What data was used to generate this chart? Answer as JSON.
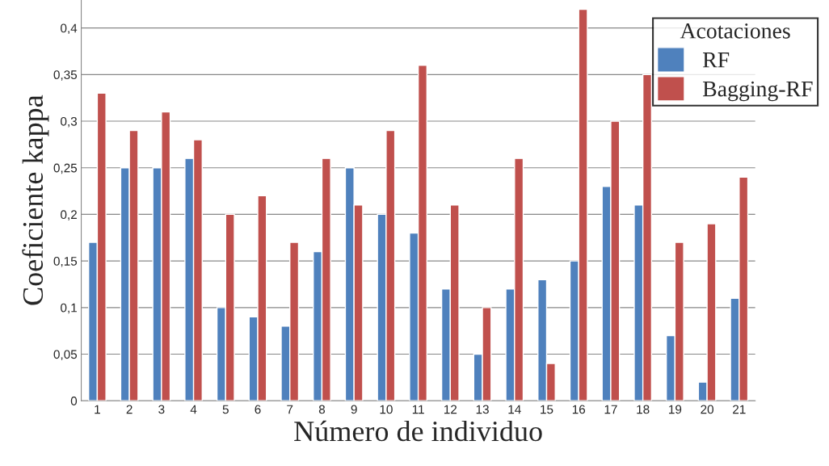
{
  "chart_data": {
    "type": "bar",
    "xlabel": "Número de individuo",
    "ylabel": "Coeficiente kappa",
    "legend_title": "Acotaciones",
    "categories": [
      "1",
      "2",
      "3",
      "4",
      "5",
      "6",
      "7",
      "8",
      "9",
      "10",
      "11",
      "12",
      "13",
      "14",
      "15",
      "16",
      "17",
      "18",
      "19",
      "20",
      "21"
    ],
    "series": [
      {
        "name": "RF",
        "color": "#4f81bd",
        "values": [
          0.17,
          0.25,
          0.25,
          0.26,
          0.1,
          0.09,
          0.08,
          0.16,
          0.25,
          0.2,
          0.18,
          0.12,
          0.05,
          0.12,
          0.13,
          0.15,
          0.23,
          0.21,
          0.07,
          0.02,
          0.11
        ]
      },
      {
        "name": "Bagging-RF",
        "color": "#c0504d",
        "values": [
          0.33,
          0.29,
          0.31,
          0.28,
          0.2,
          0.22,
          0.17,
          0.26,
          0.21,
          0.29,
          0.36,
          0.21,
          0.1,
          0.26,
          0.04,
          0.42,
          0.3,
          0.35,
          0.17,
          0.19,
          0.24
        ]
      }
    ],
    "ylim": [
      0,
      0.43
    ],
    "yticks": [
      0,
      {
        "value": 0.05,
        "label": "0,05"
      },
      {
        "value": 0.1,
        "label": "0,1"
      },
      {
        "value": 0.15,
        "label": "0,15"
      },
      {
        "value": 0.2,
        "label": "0,2"
      },
      {
        "value": 0.25,
        "label": "0,25"
      },
      {
        "value": 0.3,
        "label": "0,3"
      },
      {
        "value": 0.35,
        "label": "0,35"
      },
      {
        "value": 0.4,
        "label": "0,4"
      }
    ],
    "grid": "y",
    "legend": "top right"
  }
}
